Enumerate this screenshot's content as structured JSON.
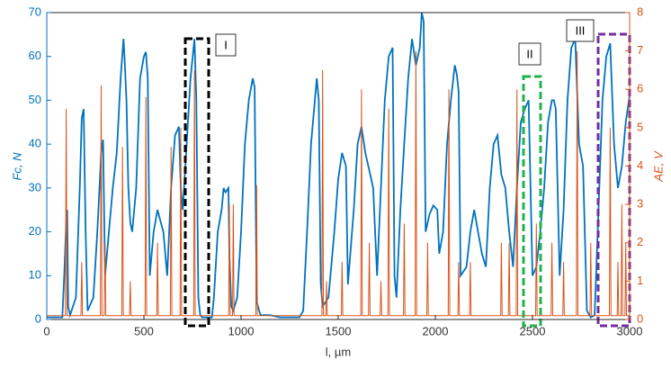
{
  "chart_data": {
    "type": "line",
    "xlabel": "l, µm",
    "ylabel": "Fc, N",
    "y2label": "AE, V",
    "xlim": [
      0,
      3000
    ],
    "xticks": [
      0,
      500,
      1000,
      1500,
      2000,
      2500,
      3000
    ],
    "ylim": [
      0,
      70
    ],
    "yticks": [
      0,
      10,
      20,
      30,
      40,
      50,
      60,
      70
    ],
    "y2lim": [
      0,
      8
    ],
    "y2ticks": [
      0,
      1,
      2,
      3,
      4,
      5,
      6,
      7,
      8
    ],
    "annotations": [
      "I",
      "II",
      "III"
    ],
    "series": [
      {
        "name": "Fc",
        "color": "#0072bd",
        "x": [
          0,
          80,
          90,
          100,
          105,
          110,
          120,
          150,
          170,
          180,
          190,
          200,
          210,
          240,
          260,
          280,
          290,
          300,
          320,
          340,
          360,
          380,
          395,
          400,
          410,
          420,
          430,
          440,
          460,
          480,
          500,
          510,
          520,
          530,
          550,
          570,
          600,
          620,
          640,
          660,
          680,
          690,
          700,
          720,
          740,
          760,
          770,
          780,
          790,
          800,
          850,
          860,
          880,
          900,
          910,
          920,
          935,
          940,
          950,
          960,
          980,
          1000,
          1020,
          1040,
          1060,
          1070,
          1080,
          1100,
          1150,
          1200,
          1300,
          1320,
          1340,
          1360,
          1390,
          1400,
          1410,
          1420,
          1450,
          1480,
          1500,
          1520,
          1540,
          1550,
          1580,
          1600,
          1620,
          1640,
          1660,
          1680,
          1700,
          1720,
          1740,
          1760,
          1780,
          1790,
          1800,
          1820,
          1840,
          1860,
          1880,
          1900,
          1920,
          1930,
          1940,
          1950,
          1970,
          1990,
          2010,
          2020,
          2040,
          2060,
          2080,
          2100,
          2110,
          2120,
          2130,
          2160,
          2180,
          2200,
          2220,
          2240,
          2260,
          2280,
          2300,
          2320,
          2340,
          2360,
          2380,
          2400,
          2420,
          2440,
          2460,
          2480,
          2500,
          2520,
          2540,
          2560,
          2580,
          2600,
          2610,
          2620,
          2640,
          2660,
          2680,
          2700,
          2720,
          2740,
          2760,
          2780,
          2800,
          2820,
          2840,
          2860,
          2880,
          2900,
          2920,
          2940,
          2960,
          2980,
          3000
        ],
        "values": [
          0.5,
          0.5,
          10,
          22,
          25,
          3,
          1,
          5,
          30,
          46,
          48,
          20,
          2,
          5,
          20,
          38,
          41,
          10,
          20,
          30,
          38,
          55,
          64,
          60,
          50,
          30,
          22,
          20,
          30,
          55,
          60,
          61,
          55,
          10,
          20,
          25,
          20,
          10,
          30,
          42,
          44,
          30,
          25,
          40,
          55,
          64,
          50,
          5,
          1,
          0.5,
          0.5,
          5,
          20,
          25,
          30,
          29,
          30,
          15,
          3,
          2,
          5,
          20,
          40,
          50,
          55,
          53,
          4,
          1,
          1,
          0.5,
          0.5,
          2,
          20,
          40,
          55,
          50,
          8,
          3,
          5,
          20,
          32,
          38,
          35,
          8,
          25,
          40,
          44,
          38,
          34,
          30,
          10,
          30,
          50,
          60,
          62,
          10,
          5,
          25,
          40,
          55,
          64,
          58,
          62,
          70,
          68,
          20,
          24,
          26,
          25,
          15,
          20,
          40,
          50,
          58,
          56,
          52,
          10,
          12,
          20,
          25,
          20,
          15,
          12,
          30,
          40,
          42,
          33,
          30,
          20,
          12,
          30,
          45,
          48,
          50,
          10,
          12,
          20,
          30,
          45,
          50,
          50,
          48,
          10,
          25,
          50,
          62,
          64,
          40,
          35,
          2,
          0.5,
          1,
          25,
          50,
          60,
          63,
          40,
          30,
          35,
          45,
          51
        ]
      },
      {
        "name": "AE",
        "color": "#d95319",
        "axis": "y2",
        "x": [
          0,
          96,
          100,
          104,
          176,
          180,
          184,
          276,
          280,
          284,
          296,
          300,
          304,
          386,
          390,
          394,
          426,
          430,
          434,
          506,
          510,
          514,
          566,
          570,
          574,
          636,
          640,
          644,
          686,
          690,
          694,
          756,
          760,
          764,
          936,
          940,
          944,
          956,
          960,
          964,
          1076,
          1080,
          1084,
          1416,
          1420,
          1424,
          1436,
          1440,
          1444,
          1516,
          1520,
          1524,
          1616,
          1620,
          1624,
          1656,
          1660,
          1664,
          1716,
          1720,
          1724,
          1756,
          1760,
          1764,
          1836,
          1840,
          1844,
          1896,
          1900,
          1904,
          1956,
          1960,
          1964,
          2066,
          2070,
          2074,
          2116,
          2120,
          2124,
          2176,
          2180,
          2184,
          2336,
          2340,
          2344,
          2376,
          2380,
          2384,
          2416,
          2420,
          2424,
          2516,
          2520,
          2524,
          2596,
          2600,
          2604,
          2656,
          2660,
          2664,
          2726,
          2730,
          2734,
          2796,
          2800,
          2804,
          2896,
          2900,
          2904,
          2936,
          2940,
          2944,
          2956,
          2960,
          2964,
          2976,
          2980,
          2984,
          3000
        ],
        "values": [
          0.1,
          0.1,
          5.5,
          0.1,
          0.1,
          1.5,
          0.1,
          0.1,
          6.1,
          0.1,
          0.1,
          2,
          0.1,
          0.1,
          4.5,
          0.1,
          0.1,
          1,
          0.1,
          0.1,
          5.8,
          0.1,
          0.1,
          2,
          0.1,
          0.1,
          4.5,
          0.1,
          0.1,
          5,
          0.1,
          0.1,
          6.5,
          0.1,
          0.1,
          3,
          0.1,
          0.1,
          3,
          0.1,
          0.1,
          3.5,
          0.1,
          0.1,
          6.5,
          0.1,
          0.1,
          1,
          0.1,
          0.1,
          1.5,
          0.1,
          0.1,
          6,
          0.1,
          0.1,
          2,
          0.1,
          0.1,
          1,
          0.1,
          0.1,
          5.5,
          0.1,
          0.1,
          2.5,
          0.1,
          0.1,
          7,
          0.1,
          0.1,
          2,
          0.1,
          0.1,
          6,
          0.1,
          0.1,
          1.5,
          0.1,
          0.1,
          1.5,
          0.1,
          0.1,
          2,
          0.1,
          0.1,
          2,
          0.1,
          0.1,
          6,
          0.1,
          0.1,
          2.5,
          0.1,
          0.1,
          2,
          0.1,
          0.1,
          1.5,
          0.1,
          0.1,
          7,
          0.1,
          0.1,
          2,
          0.1,
          0.1,
          5,
          0.1,
          0.1,
          1.5,
          0.1,
          0.1,
          3,
          0.1,
          0.1,
          2,
          0.1,
          0.1
        ]
      }
    ]
  }
}
